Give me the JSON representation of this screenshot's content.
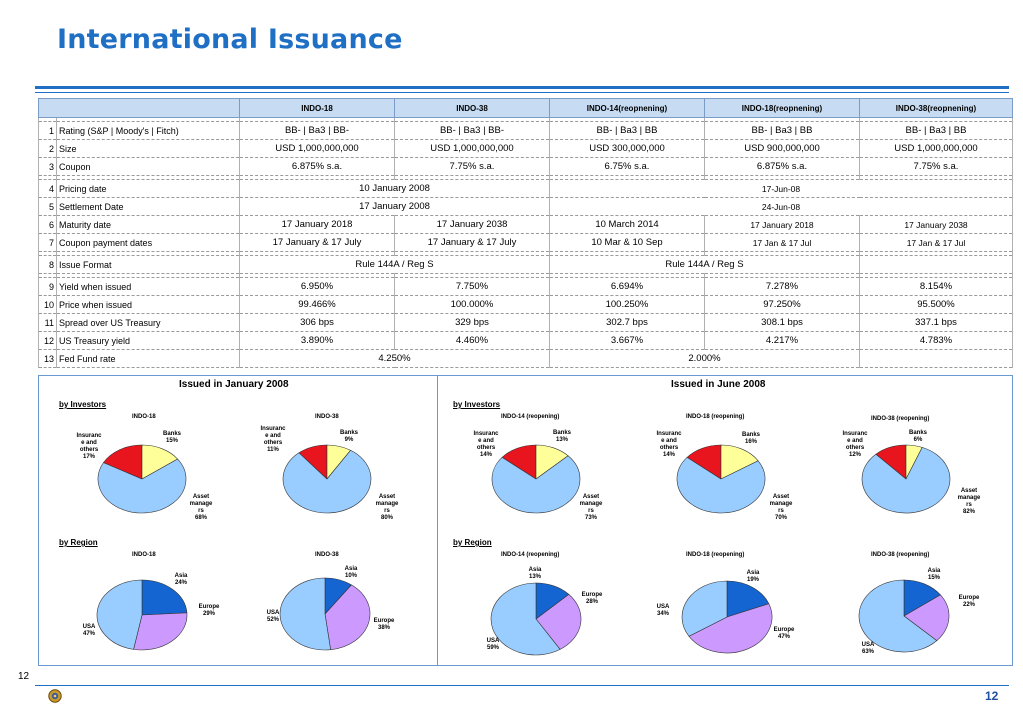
{
  "title": "International Issuance",
  "table": {
    "headers": [
      "",
      "INDO-18",
      "INDO-38",
      "INDO-14(reopnening)",
      "INDO-18(reopnening)",
      "INDO-38(reopnening)"
    ],
    "rows": [
      {
        "n": "1",
        "label": "Rating (S&P | Moody's | Fitch)",
        "v": [
          "BB- | Ba3 | BB-",
          "BB- | Ba3 | BB-",
          "BB- | Ba3 | BB",
          "BB- | Ba3 | BB",
          "BB- | Ba3 | BB"
        ]
      },
      {
        "n": "2",
        "label": "Size",
        "v": [
          "USD 1,000,000,000",
          "USD 1,000,000,000",
          "USD 300,000,000",
          "USD 900,000,000",
          "USD 1,000,000,000"
        ]
      },
      {
        "n": "3",
        "label": "Coupon",
        "v": [
          "6.875% s.a.",
          "7.75% s.a.",
          "6.75% s.a.",
          "6.875% s.a.",
          "7.75% s.a."
        ]
      },
      {
        "n": "4",
        "label": "Pricing date",
        "jan": "10 January 2008",
        "jun": "17-Jun-08"
      },
      {
        "n": "5",
        "label": "Settlement Date",
        "jan": "17 January 2008",
        "jun": "24-Jun-08"
      },
      {
        "n": "6",
        "label": "Maturity date",
        "v": [
          "17 January 2018",
          "17 January 2038",
          "10 March 2014",
          "17 January 2018",
          "17 January 2038"
        ]
      },
      {
        "n": "7",
        "label": "Coupon payment dates",
        "v": [
          "17 January  & 17 July",
          "17 January  & 17 July",
          "10 Mar & 10 Sep",
          "17 Jan & 17 Jul",
          "17 Jan  & 17 Jul"
        ]
      },
      {
        "n": "8",
        "label": "Issue Format",
        "jan": "Rule 144A / Reg S",
        "jun": "Rule 144A / Reg S"
      },
      {
        "n": "9",
        "label": "Yield when issued",
        "v": [
          "6.950%",
          "7.750%",
          "6.694%",
          "7.278%",
          "8.154%"
        ]
      },
      {
        "n": "10",
        "label": "Price when issued",
        "v": [
          "99.466%",
          "100.000%",
          "100.250%",
          "97.250%",
          "95.500%"
        ]
      },
      {
        "n": "11",
        "label": "Spread over US Treasury",
        "v": [
          "306 bps",
          "329 bps",
          "302.7 bps",
          "308.1 bps",
          "337.1 bps"
        ]
      },
      {
        "n": "12",
        "label": "US Treasury yield",
        "v": [
          "3.890%",
          "4.460%",
          "3.667%",
          "4.217%",
          "4.783%"
        ]
      },
      {
        "n": "13",
        "label": "Fed Fund rate",
        "jan": "4.250%",
        "jun": "2.000%"
      }
    ]
  },
  "panels": {
    "left_title": "Issued in January 2008",
    "right_title": "Issued in June 2008",
    "by_investors": "by Investors",
    "by_region": "by Region"
  },
  "colors": {
    "accent": "#1f6fc5",
    "red": "#e8141e",
    "yellow": "#ffff99",
    "lightblue": "#99ccff",
    "blue": "#1464d2",
    "violet": "#cc99ff"
  },
  "chart_data": [
    {
      "type": "pie",
      "title": "INDO-18",
      "group": "investors",
      "panel": "January 2008",
      "slices": [
        {
          "label": "Insurance and others",
          "value": 17
        },
        {
          "label": "Banks",
          "value": 15
        },
        {
          "label": "Asset managers",
          "value": 68
        }
      ]
    },
    {
      "type": "pie",
      "title": "INDO-38",
      "group": "investors",
      "panel": "January 2008",
      "slices": [
        {
          "label": "Insurance and others",
          "value": 11
        },
        {
          "label": "Banks",
          "value": 9
        },
        {
          "label": "Asset managers",
          "value": 80
        }
      ]
    },
    {
      "type": "pie",
      "title": "INDO-14 (reopening)",
      "group": "investors",
      "panel": "June 2008",
      "slices": [
        {
          "label": "Insurance and others",
          "value": 14
        },
        {
          "label": "Banks",
          "value": 13
        },
        {
          "label": "Asset managers",
          "value": 73
        }
      ]
    },
    {
      "type": "pie",
      "title": "INDO-18 (reopening)",
      "group": "investors",
      "panel": "June 2008",
      "slices": [
        {
          "label": "Insurance and others",
          "value": 14
        },
        {
          "label": "Banks",
          "value": 16
        },
        {
          "label": "Asset managers",
          "value": 70
        }
      ]
    },
    {
      "type": "pie",
      "title": "INDO-38 (reopening)",
      "group": "investors",
      "panel": "June 2008",
      "slices": [
        {
          "label": "Insurance and others",
          "value": 12
        },
        {
          "label": "Banks",
          "value": 6
        },
        {
          "label": "Asset managers",
          "value": 82
        }
      ]
    },
    {
      "type": "pie",
      "title": "INDO-18",
      "group": "region",
      "panel": "January 2008",
      "slices": [
        {
          "label": "Asia",
          "value": 24
        },
        {
          "label": "Europe",
          "value": 29
        },
        {
          "label": "USA",
          "value": 47
        }
      ]
    },
    {
      "type": "pie",
      "title": "INDO-38",
      "group": "region",
      "panel": "January 2008",
      "slices": [
        {
          "label": "Asia",
          "value": 10
        },
        {
          "label": "Europe",
          "value": 38
        },
        {
          "label": "USA",
          "value": 52
        }
      ]
    },
    {
      "type": "pie",
      "title": "INDO-14 (reopening)",
      "group": "region",
      "panel": "June 2008",
      "slices": [
        {
          "label": "Asia",
          "value": 13
        },
        {
          "label": "Europe",
          "value": 28
        },
        {
          "label": "USA",
          "value": 59
        }
      ]
    },
    {
      "type": "pie",
      "title": "INDO-18 (reopening)",
      "group": "region",
      "panel": "June 2008",
      "slices": [
        {
          "label": "Asia",
          "value": 19
        },
        {
          "label": "Europe",
          "value": 47
        },
        {
          "label": "USA",
          "value": 34
        }
      ]
    },
    {
      "type": "pie",
      "title": "INDO-38 (reopening)",
      "group": "region",
      "panel": "June 2008",
      "slices": [
        {
          "label": "Asia",
          "value": 15
        },
        {
          "label": "Europe",
          "value": 22
        },
        {
          "label": "USA",
          "value": 63
        }
      ]
    }
  ],
  "pie_labels": [
    {
      "t1": "Insuranc",
      "t2": "e and",
      "t3": "others",
      "t4": "17%",
      "b1": "Banks",
      "b2": "15%",
      "a1": "Asset",
      "a2": "manage",
      "a3": "rs",
      "a4": "68%"
    },
    {
      "t1": "Insuranc",
      "t2": "e and",
      "t3": "others",
      "t4": "11%",
      "b1": "Banks",
      "b2": "9%",
      "a1": "Asset",
      "a2": "manage",
      "a3": "rs",
      "a4": "80%"
    },
    {
      "t1": "Insuranc",
      "t2": "e and",
      "t3": "others",
      "t4": "14%",
      "b1": "Banks",
      "b2": "13%",
      "a1": "Asset",
      "a2": "manage",
      "a3": "rs",
      "a4": "73%"
    },
    {
      "t1": "Insuranc",
      "t2": "e and",
      "t3": "others",
      "t4": "14%",
      "b1": "Banks",
      "b2": "16%",
      "a1": "Asset",
      "a2": "manage",
      "a3": "rs",
      "a4": "70%"
    },
    {
      "t1": "Insuranc",
      "t2": "e and",
      "t3": "others",
      "t4": "12%",
      "b1": "Banks",
      "b2": "6%",
      "a1": "Asset",
      "a2": "manage",
      "a3": "rs",
      "a4": "82%"
    }
  ],
  "region_labels": [
    {
      "asia": "Asia",
      "asia_p": "24%",
      "eu": "Europe",
      "eu_p": "29%",
      "usa": "USA",
      "usa_p": "47%"
    },
    {
      "asia": "Asia",
      "asia_p": "10%",
      "eu": "Europe",
      "eu_p": "38%",
      "usa": "USA",
      "usa_p": "52%"
    },
    {
      "asia": "Asia",
      "asia_p": "13%",
      "eu": "Europe",
      "eu_p": "28%",
      "usa": "USA",
      "usa_p": "59%"
    },
    {
      "asia": "Asia",
      "asia_p": "19%",
      "eu": "Europe",
      "eu_p": "47%",
      "usa": "USA",
      "usa_p": "34%"
    },
    {
      "asia": "Asia",
      "asia_p": "15%",
      "eu": "Europe",
      "eu_p": "22%",
      "usa": "USA",
      "usa_p": "63%"
    }
  ],
  "footer": {
    "page_left": "12",
    "page_right": "12"
  }
}
